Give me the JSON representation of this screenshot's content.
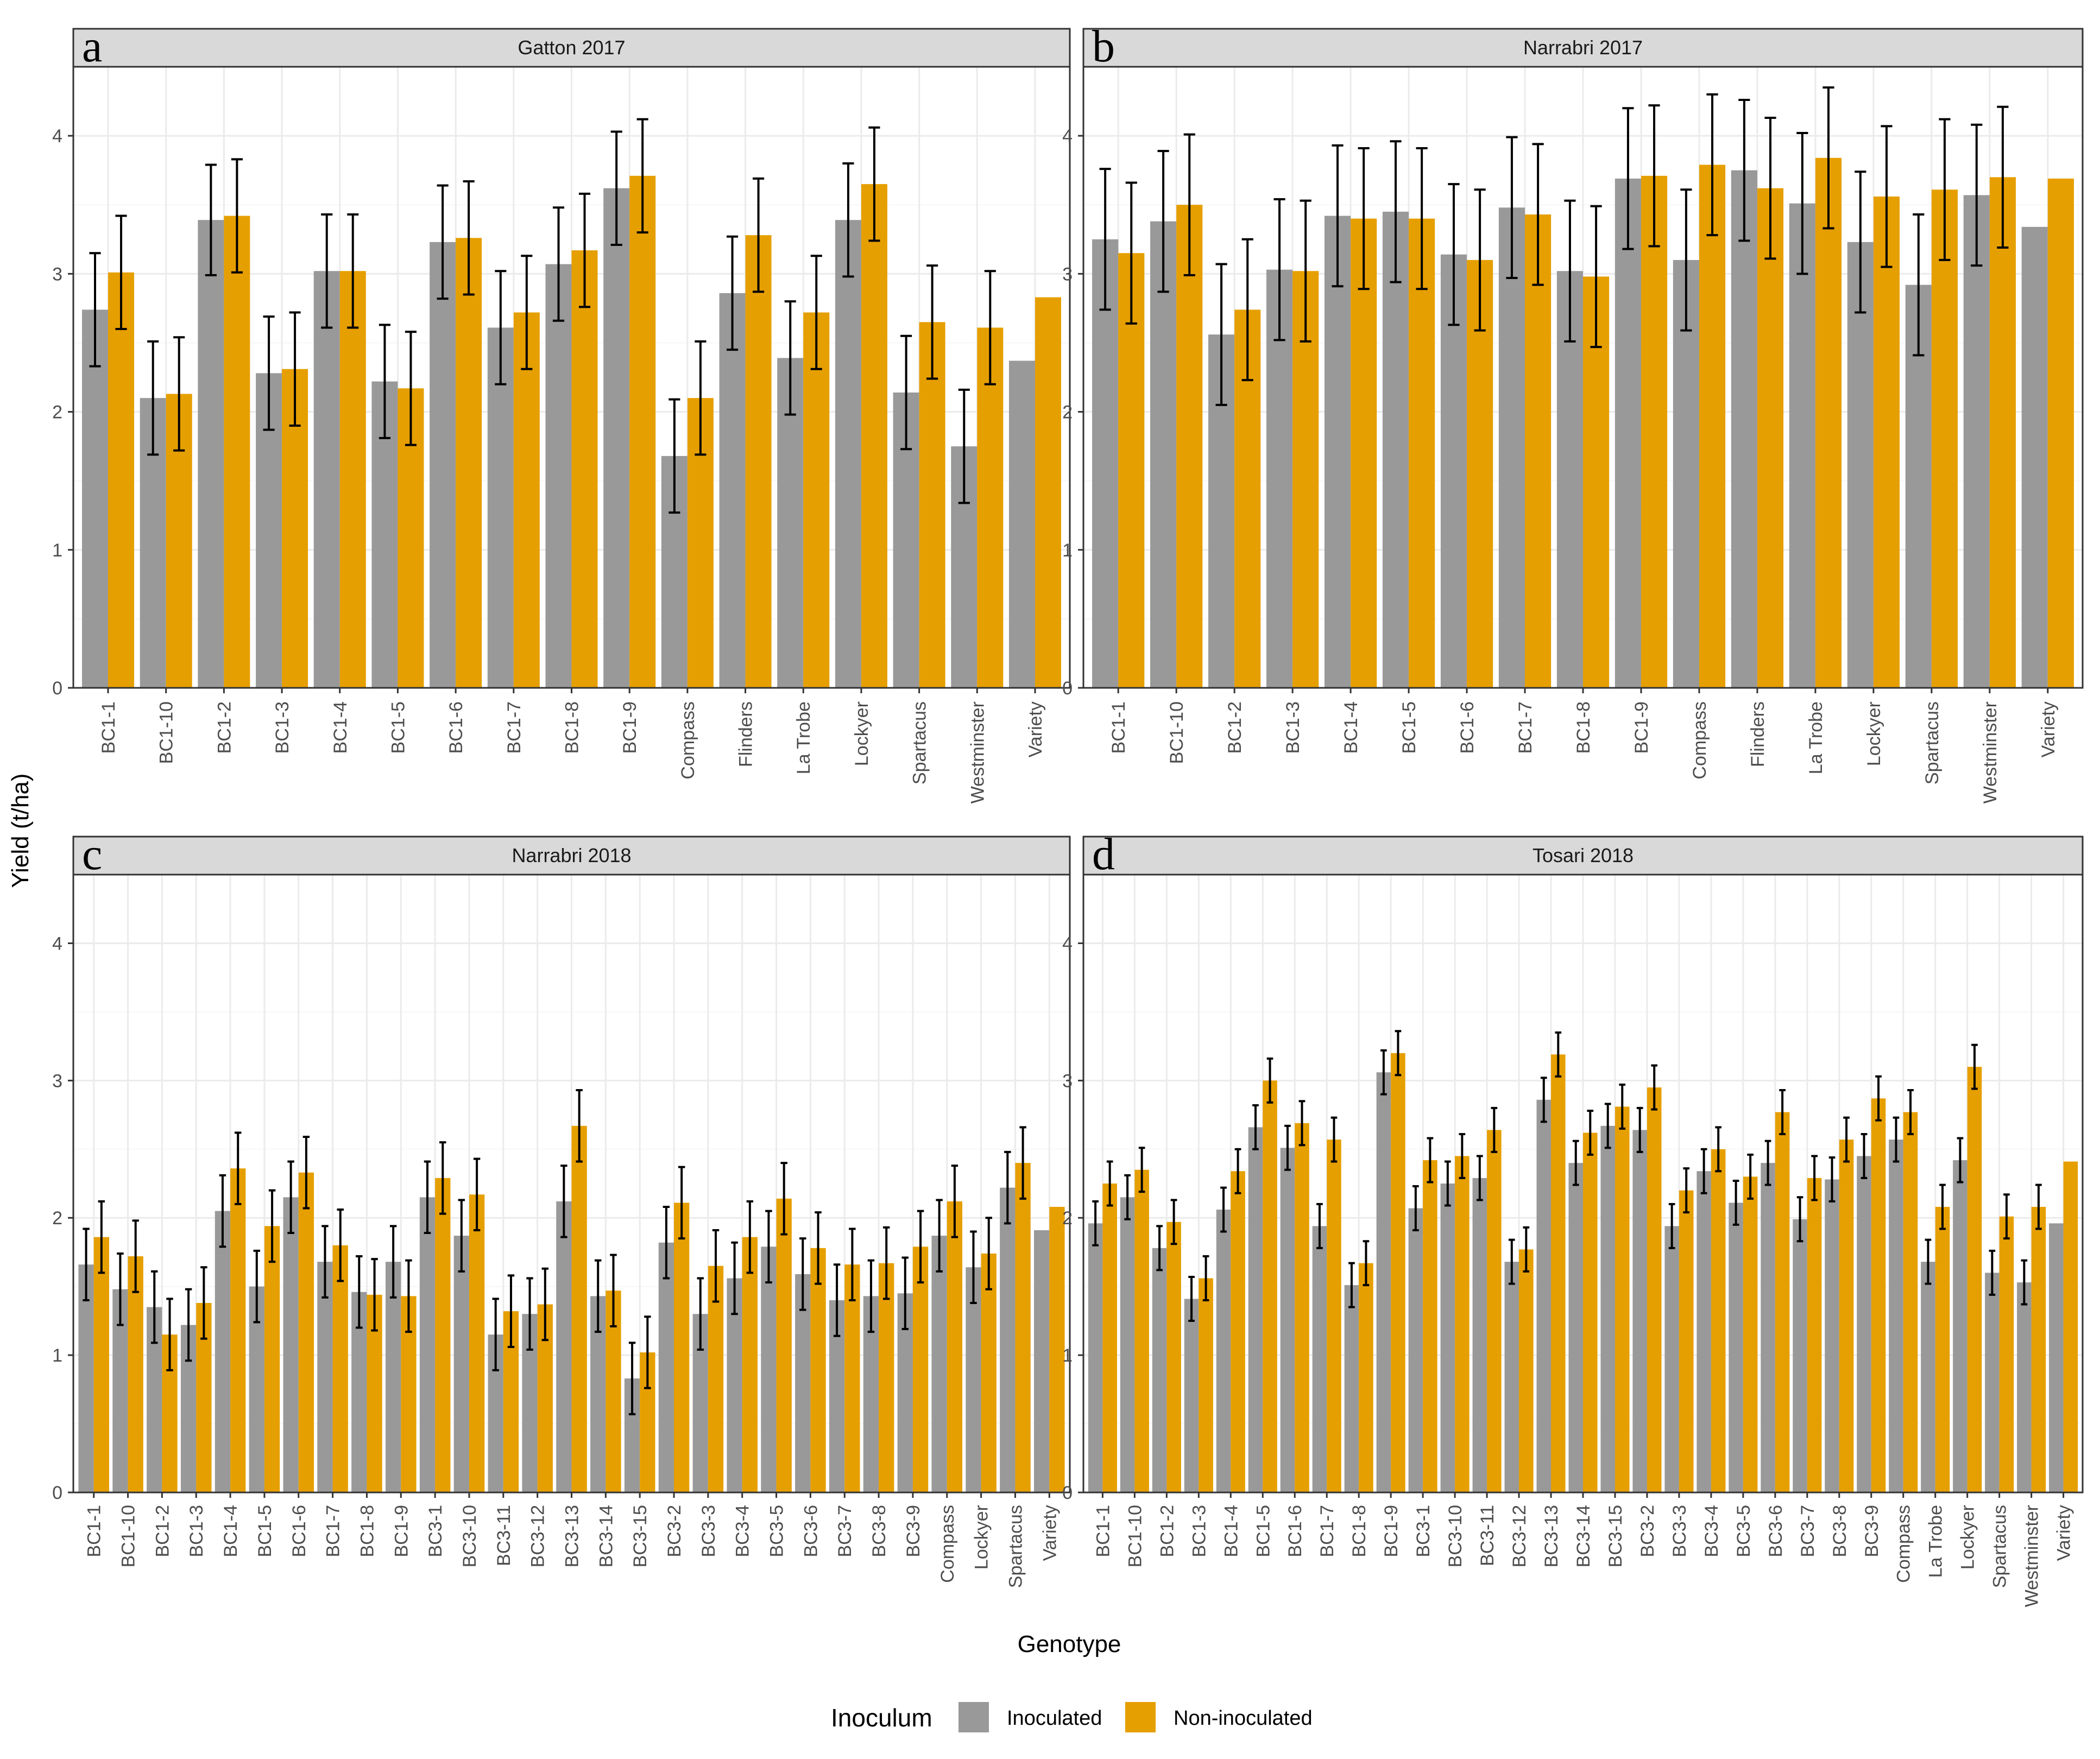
{
  "figure": {
    "ylabel": "Yield (t/ha)",
    "xlabel": "Genotype"
  },
  "legend": {
    "title": "Inoculum",
    "items": [
      {
        "label": "Inoculated",
        "color": "#999999"
      },
      {
        "label": "Non-inoculated",
        "color": "#E69F00"
      }
    ]
  },
  "chart_data": [
    {
      "type": "bar",
      "letter": "a",
      "title": "Gatton 2017",
      "ylim": [
        0,
        4.5
      ],
      "yticks": [
        0,
        1,
        2,
        3,
        4
      ],
      "categories": [
        "BC1-1",
        "BC1-10",
        "BC1-2",
        "BC1-3",
        "BC1-4",
        "BC1-5",
        "BC1-6",
        "BC1-7",
        "BC1-8",
        "BC1-9",
        "Compass",
        "Flinders",
        "La Trobe",
        "Lockyer",
        "Spartacus",
        "Westminster",
        "Variety"
      ],
      "series": [
        {
          "name": "Inoculated",
          "color": "#999999",
          "values": [
            2.74,
            2.1,
            3.39,
            2.28,
            3.02,
            2.22,
            3.23,
            2.61,
            3.07,
            3.62,
            1.68,
            2.86,
            2.39,
            3.39,
            2.14,
            1.75,
            2.37
          ],
          "errors": [
            0.41,
            0.41,
            0.4,
            0.41,
            0.41,
            0.41,
            0.41,
            0.41,
            0.41,
            0.41,
            0.41,
            0.41,
            0.41,
            0.41,
            0.41,
            0.41,
            null
          ]
        },
        {
          "name": "Non-inoculated",
          "color": "#E69F00",
          "values": [
            3.01,
            2.13,
            3.42,
            2.31,
            3.02,
            2.17,
            3.26,
            2.72,
            3.17,
            3.71,
            2.1,
            3.28,
            2.72,
            3.65,
            2.65,
            2.61,
            2.83
          ],
          "errors": [
            0.41,
            0.41,
            0.41,
            0.41,
            0.41,
            0.41,
            0.41,
            0.41,
            0.41,
            0.41,
            0.41,
            0.41,
            0.41,
            0.41,
            0.41,
            0.41,
            null
          ]
        }
      ]
    },
    {
      "type": "bar",
      "letter": "b",
      "title": "Narrabri 2017",
      "ylim": [
        0,
        4.5
      ],
      "yticks": [
        0,
        1,
        2,
        3,
        4
      ],
      "categories": [
        "BC1-1",
        "BC1-10",
        "BC1-2",
        "BC1-3",
        "BC1-4",
        "BC1-5",
        "BC1-6",
        "BC1-7",
        "BC1-8",
        "BC1-9",
        "Compass",
        "Flinders",
        "La Trobe",
        "Lockyer",
        "Spartacus",
        "Westminster",
        "Variety"
      ],
      "series": [
        {
          "name": "Inoculated",
          "color": "#999999",
          "values": [
            3.25,
            3.38,
            2.56,
            3.03,
            3.42,
            3.45,
            3.14,
            3.48,
            3.02,
            3.69,
            3.1,
            3.75,
            3.51,
            3.23,
            2.92,
            3.57,
            3.34
          ],
          "errors": [
            0.51,
            0.51,
            0.51,
            0.51,
            0.51,
            0.51,
            0.51,
            0.51,
            0.51,
            0.51,
            0.51,
            0.51,
            0.51,
            0.51,
            0.51,
            0.51,
            null
          ]
        },
        {
          "name": "Non-inoculated",
          "color": "#E69F00",
          "values": [
            3.15,
            3.5,
            2.74,
            3.02,
            3.4,
            3.4,
            3.1,
            3.43,
            2.98,
            3.71,
            3.79,
            3.62,
            3.84,
            3.56,
            3.61,
            3.7,
            3.69
          ],
          "errors": [
            0.51,
            0.51,
            0.51,
            0.51,
            0.51,
            0.51,
            0.51,
            0.51,
            0.51,
            0.51,
            0.51,
            0.51,
            0.51,
            0.51,
            0.51,
            0.51,
            null
          ]
        }
      ]
    },
    {
      "type": "bar",
      "letter": "c",
      "title": "Narrabri 2018",
      "ylim": [
        0,
        4.5
      ],
      "yticks": [
        0,
        1,
        2,
        3,
        4
      ],
      "categories": [
        "BC1-1",
        "BC1-10",
        "BC1-2",
        "BC1-3",
        "BC1-4",
        "BC1-5",
        "BC1-6",
        "BC1-7",
        "BC1-8",
        "BC1-9",
        "BC3-1",
        "BC3-10",
        "BC3-11",
        "BC3-12",
        "BC3-13",
        "BC3-14",
        "BC3-15",
        "BC3-2",
        "BC3-3",
        "BC3-4",
        "BC3-5",
        "BC3-6",
        "BC3-7",
        "BC3-8",
        "BC3-9",
        "Compass",
        "Lockyer",
        "Spartacus",
        "Variety"
      ],
      "series": [
        {
          "name": "Inoculated",
          "color": "#999999",
          "values": [
            1.66,
            1.48,
            1.35,
            1.22,
            2.05,
            1.5,
            2.15,
            1.68,
            1.46,
            1.68,
            2.15,
            1.87,
            1.15,
            1.3,
            2.12,
            1.43,
            0.83,
            1.82,
            1.3,
            1.56,
            1.79,
            1.59,
            1.4,
            1.43,
            1.45,
            1.87,
            1.64,
            2.22,
            1.91
          ],
          "errors": [
            0.26,
            0.26,
            0.26,
            0.26,
            0.26,
            0.26,
            0.26,
            0.26,
            0.26,
            0.26,
            0.26,
            0.26,
            0.26,
            0.26,
            0.26,
            0.26,
            0.26,
            0.26,
            0.26,
            0.26,
            0.26,
            0.26,
            0.26,
            0.26,
            0.26,
            0.26,
            0.26,
            0.26,
            null
          ]
        },
        {
          "name": "Non-inoculated",
          "color": "#E69F00",
          "values": [
            1.86,
            1.72,
            1.15,
            1.38,
            2.36,
            1.94,
            2.33,
            1.8,
            1.44,
            1.43,
            2.29,
            2.17,
            1.32,
            1.37,
            2.67,
            1.47,
            1.02,
            2.11,
            1.65,
            1.86,
            2.14,
            1.78,
            1.66,
            1.67,
            1.79,
            2.12,
            1.74,
            2.4,
            2.08
          ],
          "errors": [
            0.26,
            0.26,
            0.26,
            0.26,
            0.26,
            0.26,
            0.26,
            0.26,
            0.26,
            0.26,
            0.26,
            0.26,
            0.26,
            0.26,
            0.26,
            0.26,
            0.26,
            0.26,
            0.26,
            0.26,
            0.26,
            0.26,
            0.26,
            0.26,
            0.26,
            0.26,
            0.26,
            0.26,
            null
          ]
        }
      ]
    },
    {
      "type": "bar",
      "letter": "d",
      "title": "Tosari 2018",
      "ylim": [
        0,
        4.5
      ],
      "yticks": [
        0,
        1,
        2,
        3,
        4
      ],
      "categories": [
        "BC1-1",
        "BC1-10",
        "BC1-2",
        "BC1-3",
        "BC1-4",
        "BC1-5",
        "BC1-6",
        "BC1-7",
        "BC1-8",
        "BC1-9",
        "BC3-1",
        "BC3-10",
        "BC3-11",
        "BC3-12",
        "BC3-13",
        "BC3-14",
        "BC3-15",
        "BC3-2",
        "BC3-3",
        "BC3-4",
        "BC3-5",
        "BC3-6",
        "BC3-7",
        "BC3-8",
        "BC3-9",
        "Compass",
        "La Trobe",
        "Lockyer",
        "Spartacus",
        "Westminster",
        "Variety"
      ],
      "series": [
        {
          "name": "Inoculated",
          "color": "#999999",
          "values": [
            1.96,
            2.15,
            1.78,
            1.41,
            2.06,
            2.66,
            2.51,
            1.94,
            1.51,
            3.06,
            2.07,
            2.25,
            2.29,
            1.68,
            2.86,
            2.4,
            2.67,
            2.64,
            1.94,
            2.34,
            2.11,
            2.4,
            1.99,
            2.28,
            2.45,
            2.57,
            1.68,
            2.42,
            1.6,
            1.53,
            1.96
          ],
          "errors": [
            0.16,
            0.16,
            0.16,
            0.16,
            0.16,
            0.16,
            0.16,
            0.16,
            0.16,
            0.16,
            0.16,
            0.16,
            0.16,
            0.16,
            0.16,
            0.16,
            0.16,
            0.16,
            0.16,
            0.16,
            0.16,
            0.16,
            0.16,
            0.16,
            0.16,
            0.16,
            0.16,
            0.16,
            0.16,
            0.16,
            null
          ]
        },
        {
          "name": "Non-inoculated",
          "color": "#E69F00",
          "values": [
            2.25,
            2.35,
            1.97,
            1.56,
            2.34,
            3.0,
            2.69,
            2.57,
            1.67,
            3.2,
            2.42,
            2.45,
            2.64,
            1.77,
            3.19,
            2.62,
            2.81,
            2.95,
            2.2,
            2.5,
            2.3,
            2.77,
            2.29,
            2.57,
            2.87,
            2.77,
            2.08,
            3.1,
            2.01,
            2.08,
            2.41
          ],
          "errors": [
            0.16,
            0.16,
            0.16,
            0.16,
            0.16,
            0.16,
            0.16,
            0.16,
            0.16,
            0.16,
            0.16,
            0.16,
            0.16,
            0.16,
            0.16,
            0.16,
            0.16,
            0.16,
            0.16,
            0.16,
            0.16,
            0.16,
            0.16,
            0.16,
            0.16,
            0.16,
            0.16,
            0.16,
            0.16,
            0.16,
            null
          ]
        }
      ]
    }
  ]
}
